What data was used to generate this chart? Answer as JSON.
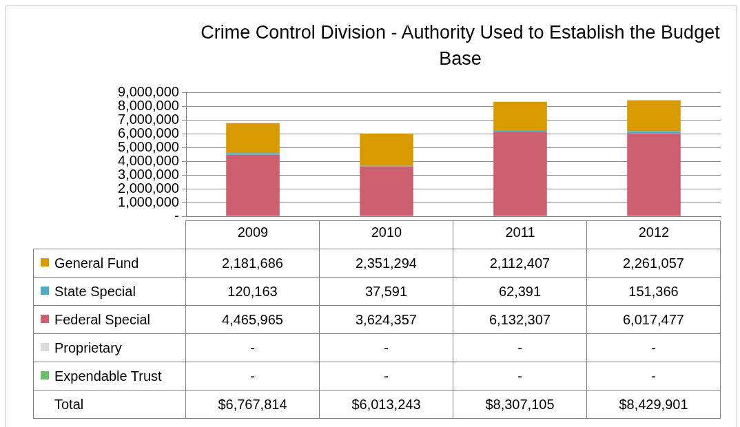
{
  "chart_data": {
    "type": "bar",
    "title": "Crime Control Division - Authority  Used to Establish the Budget Base",
    "categories": [
      "2009",
      "2010",
      "2011",
      "2012"
    ],
    "stacked": true,
    "series": [
      {
        "name": "Expendable Trust",
        "color": "#6abf69",
        "values": [
          0,
          0,
          0,
          0
        ],
        "value_labels": [
          "-",
          "-",
          "-",
          "-"
        ]
      },
      {
        "name": "Proprietary",
        "color": "#d9d9d9",
        "values": [
          0,
          0,
          0,
          0
        ],
        "value_labels": [
          "-",
          "-",
          "-",
          "-"
        ]
      },
      {
        "name": "Federal Special",
        "color": "#cd5f6e",
        "values": [
          4465965,
          3624357,
          6132307,
          6017477
        ],
        "value_labels": [
          "4,465,965",
          "3,624,357",
          "6,132,307",
          "6,017,477"
        ]
      },
      {
        "name": "State Special",
        "color": "#4bacc6",
        "values": [
          120163,
          37591,
          62391,
          151366
        ],
        "value_labels": [
          "120,163",
          "37,591",
          "62,391",
          "151,366"
        ]
      },
      {
        "name": "General Fund",
        "color": "#d99a00",
        "values": [
          2181686,
          2351294,
          2112407,
          2261057
        ],
        "value_labels": [
          "2,181,686",
          "2,351,294",
          "2,112,407",
          "2,261,057"
        ]
      }
    ],
    "annotations": [
      "Total",
      "$6,767,814",
      "$6,013,243",
      "$8,307,105",
      "$8,429,901"
    ],
    "ylim": [
      0,
      9000000
    ],
    "yticks": [
      {
        "value": 0,
        "label": "-"
      },
      {
        "value": 1000000,
        "label": "1,000,000"
      },
      {
        "value": 2000000,
        "label": "2,000,000"
      },
      {
        "value": 3000000,
        "label": "3,000,000"
      },
      {
        "value": 4000000,
        "label": "4,000,000"
      },
      {
        "value": 5000000,
        "label": "5,000,000"
      },
      {
        "value": 6000000,
        "label": "6,000,000"
      },
      {
        "value": 7000000,
        "label": "7,000,000"
      },
      {
        "value": 8000000,
        "label": "8,000,000"
      },
      {
        "value": 9000000,
        "label": "9,000,000"
      }
    ],
    "grid": "y",
    "legend": "bottom"
  }
}
